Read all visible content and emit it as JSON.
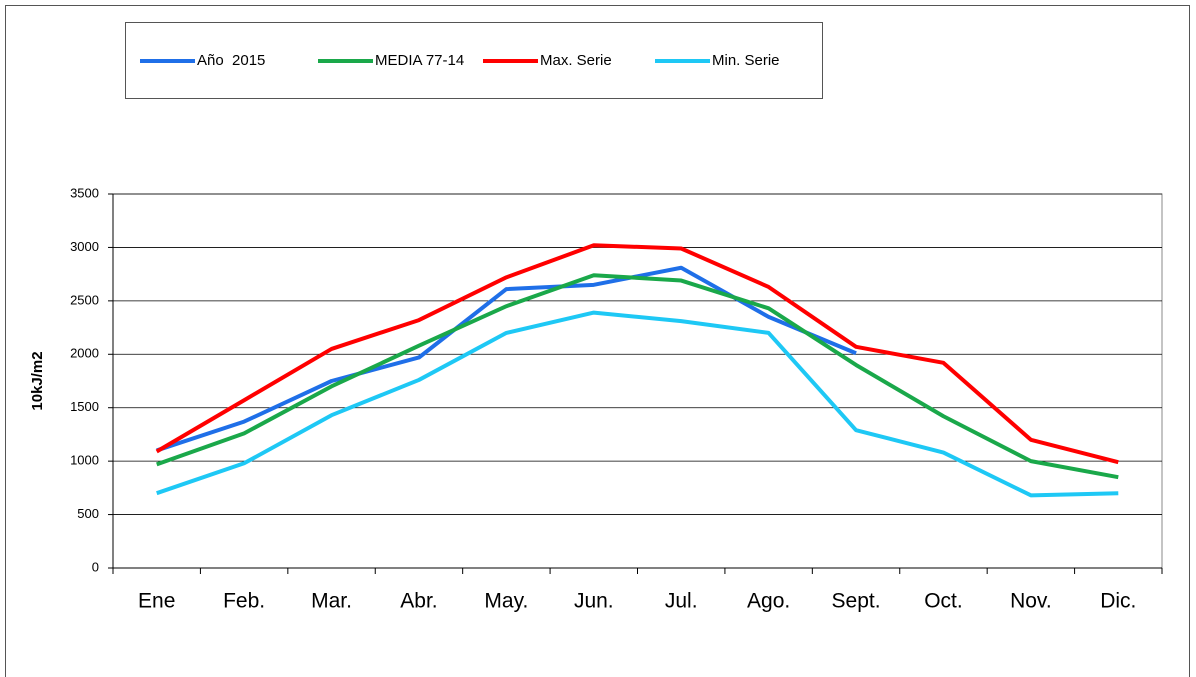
{
  "chart_data": {
    "type": "line",
    "y_label": "10kJ/m2",
    "categories": [
      "Ene",
      "Feb.",
      "Mar.",
      "Abr.",
      "May.",
      "Jun.",
      "Jul.",
      "Ago.",
      "Sept.",
      "Oct.",
      "Nov.",
      "Dic."
    ],
    "series": [
      {
        "name": "Año  2015",
        "color": "#1f6fe8",
        "values": [
          1100,
          1370,
          1750,
          1970,
          2610,
          2650,
          2810,
          2350,
          2010,
          null,
          null,
          null
        ]
      },
      {
        "name": "MEDIA 77-14",
        "color": "#1aa84a",
        "values": [
          970,
          1260,
          1700,
          2080,
          2450,
          2740,
          2690,
          2430,
          1900,
          1420,
          1000,
          850
        ]
      },
      {
        "name": "Max. Serie",
        "color": "#ff0000",
        "values": [
          1090,
          1570,
          2050,
          2320,
          2720,
          3020,
          2990,
          2630,
          2070,
          1920,
          1200,
          990
        ]
      },
      {
        "name": "Min. Serie",
        "color": "#1ec8f5",
        "values": [
          700,
          980,
          1430,
          1760,
          2200,
          2390,
          2310,
          2200,
          1290,
          1080,
          680,
          700
        ]
      }
    ],
    "ylim": [
      0,
      3500
    ],
    "yticks": [
      0,
      500,
      1000,
      1500,
      2000,
      2500,
      3000,
      3500
    ],
    "grid": true
  }
}
